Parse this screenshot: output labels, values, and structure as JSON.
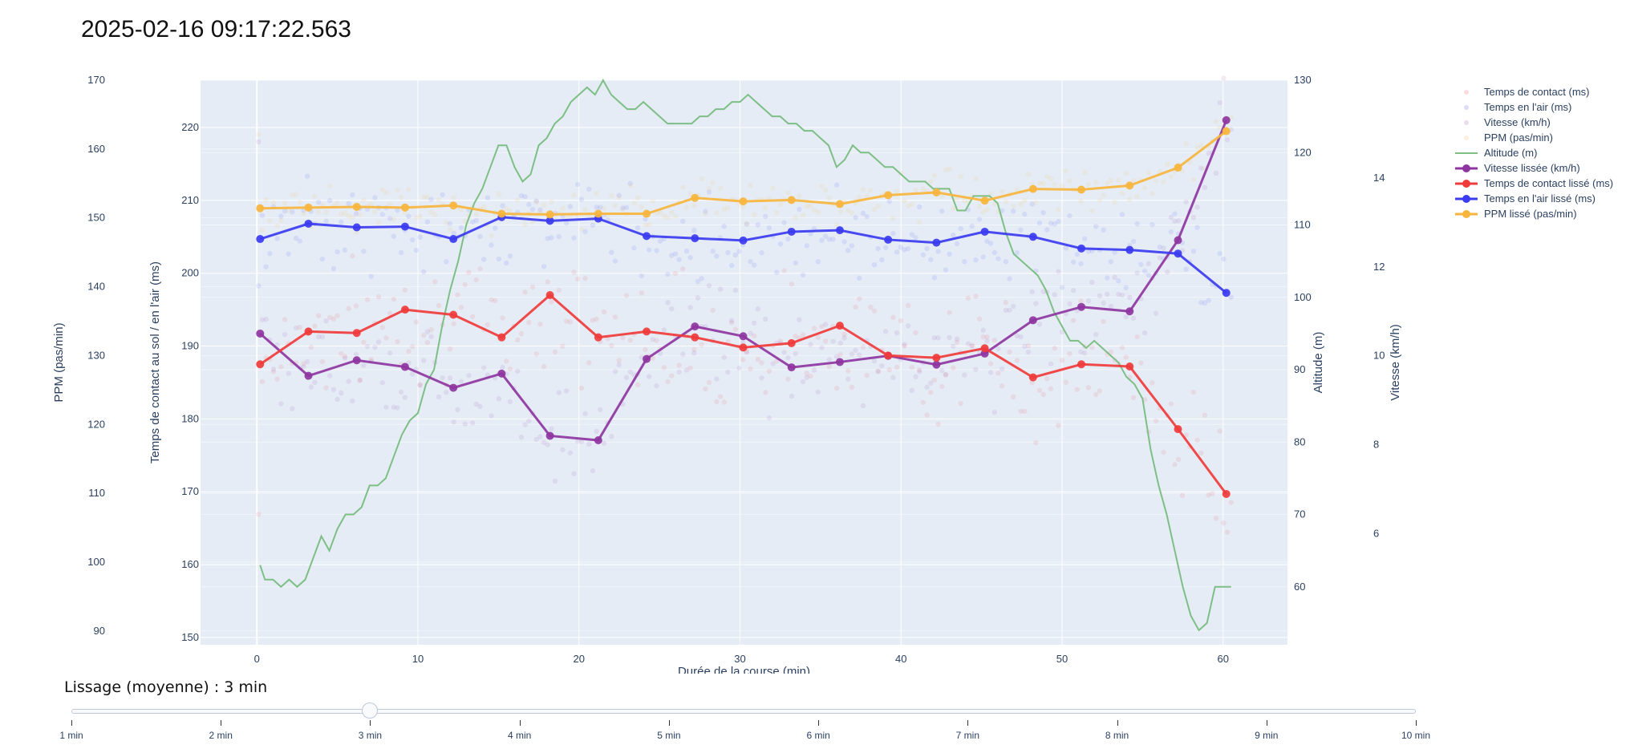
{
  "header": {
    "title": "2025-02-16 09:17:22.563"
  },
  "slider": {
    "label": "Lissage (moyenne) : 3 min",
    "value_index": 2,
    "steps": [
      "1 min",
      "2 min",
      "3 min",
      "4 min",
      "5 min",
      "6 min",
      "7 min",
      "8 min",
      "9 min",
      "10 min"
    ]
  },
  "chart_data": {
    "type": "line",
    "xlabel": "Durée de la course (min)",
    "xlim": [
      -3.5,
      64
    ],
    "xticks": [
      0,
      10,
      20,
      30,
      40,
      50,
      60
    ],
    "axes": {
      "contact": {
        "label": "Temps de contact au sol / en l'air (ms)",
        "range": [
          149,
          226.5
        ],
        "ticks": [
          150,
          160,
          170,
          180,
          190,
          200,
          210,
          220
        ]
      },
      "ppm": {
        "label": "PPM (pas/min)",
        "range": [
          88,
          170
        ],
        "ticks": [
          90,
          100,
          110,
          120,
          130,
          140,
          150,
          160,
          170
        ]
      },
      "altitude": {
        "label": "Altitude (m)",
        "range": [
          52,
          130
        ],
        "ticks": [
          60,
          70,
          80,
          90,
          100,
          110,
          120,
          130
        ]
      },
      "vitesse": {
        "label": "Vitesse (km/h)",
        "range": [
          3.5,
          16.2
        ],
        "ticks": [
          6,
          8,
          10,
          12,
          14
        ]
      }
    },
    "legend_position": "top-right",
    "colors": {
      "contact": "#f03b3b",
      "air": "#3b3bf0",
      "vitesse": "#8e35a0",
      "ppm": "#f7b53d",
      "altitude": "#7dbf85",
      "plot_bg": "#e5ecf6"
    },
    "series": [
      {
        "name": "Temps de contact (ms)",
        "type": "scatter",
        "axis": "contact",
        "color": "#f03b3b"
      },
      {
        "name": "Temps en l'air (ms)",
        "type": "scatter",
        "axis": "contact",
        "color": "#3b3bf0"
      },
      {
        "name": "Vitesse (km/h)",
        "type": "scatter",
        "axis": "vitesse",
        "color": "#8e35a0"
      },
      {
        "name": "PPM (pas/min)",
        "type": "scatter",
        "axis": "ppm",
        "color": "#f7b53d"
      },
      {
        "name": "Altitude (m)",
        "type": "line",
        "axis": "altitude",
        "color": "#7dbf85",
        "x": [
          0.2,
          0.5,
          1,
          1.5,
          2,
          2.5,
          3,
          3.5,
          4,
          4.5,
          5,
          5.5,
          6,
          6.5,
          7,
          7.5,
          8,
          8.5,
          9,
          9.5,
          10,
          10.5,
          11,
          11.5,
          12,
          12.5,
          13,
          13.5,
          14,
          14.5,
          15,
          15.5,
          16,
          16.5,
          17,
          17.5,
          18,
          18.5,
          19,
          19.5,
          20,
          20.5,
          21,
          21.5,
          22,
          22.5,
          23,
          23.5,
          24,
          24.5,
          25,
          25.5,
          26,
          26.5,
          27,
          27.5,
          28,
          28.5,
          29,
          29.5,
          30,
          30.5,
          31,
          31.5,
          32,
          32.5,
          33,
          33.5,
          34,
          34.5,
          35,
          35.5,
          36,
          36.5,
          37,
          37.5,
          38,
          38.5,
          39,
          39.5,
          40,
          40.5,
          41,
          41.5,
          42,
          42.5,
          43,
          43.5,
          44,
          44.5,
          45,
          45.5,
          46,
          46.5,
          47,
          47.5,
          48,
          48.5,
          49,
          49.5,
          50,
          50.5,
          51,
          51.5,
          52,
          52.5,
          53,
          53.5,
          54,
          54.5,
          55,
          55.5,
          56,
          56.5,
          57,
          57.5,
          58,
          58.5,
          59,
          59.5,
          60,
          60.5
        ],
        "y": [
          63,
          61,
          61,
          60,
          61,
          60,
          61,
          64,
          67,
          65,
          68,
          70,
          70,
          71,
          74,
          74,
          75,
          78,
          81,
          83,
          84,
          88,
          90,
          96,
          101,
          105,
          110,
          113,
          115,
          118,
          121,
          121,
          118,
          116,
          117,
          121,
          122,
          124,
          125,
          127,
          128,
          129,
          128,
          130,
          128,
          127,
          126,
          126,
          127,
          126,
          125,
          124,
          124,
          124,
          124,
          125,
          125,
          126,
          126,
          127,
          127,
          128,
          127,
          126,
          125,
          125,
          124,
          124,
          123,
          123,
          122,
          121,
          118,
          119,
          121,
          120,
          120,
          119,
          118,
          118,
          117,
          116,
          116,
          116,
          115,
          115,
          115,
          112,
          112,
          114,
          114,
          114,
          113,
          109,
          106,
          105,
          104,
          103,
          101,
          98,
          96,
          94,
          94,
          93,
          94,
          93,
          92,
          91,
          89,
          88,
          86,
          79,
          74,
          70,
          65,
          60,
          56,
          54,
          55,
          60,
          60,
          60
        ]
      },
      {
        "name": "Vitesse lissée (km/h)",
        "type": "line+markers",
        "axis": "vitesse",
        "color": "#8e35a0",
        "x": [
          0.2,
          3.2,
          6.2,
          9.2,
          12.2,
          15.2,
          18.2,
          21.2,
          24.2,
          27.2,
          30.2,
          33.2,
          36.2,
          39.2,
          42.2,
          45.2,
          48.2,
          51.2,
          54.2,
          57.2,
          60.2
        ],
        "y": [
          10.5,
          9.55,
          9.9,
          9.75,
          9.28,
          9.6,
          8.2,
          8.1,
          9.93,
          10.66,
          10.44,
          9.74,
          9.86,
          10.0,
          9.8,
          10.05,
          10.8,
          11.1,
          11.0,
          12.6,
          15.3
        ]
      },
      {
        "name": "Temps de contact lissé (ms)",
        "type": "line+markers",
        "axis": "contact",
        "color": "#f03b3b",
        "x": [
          0.2,
          3.2,
          6.2,
          9.2,
          12.2,
          15.2,
          18.2,
          21.2,
          24.2,
          27.2,
          30.2,
          33.2,
          36.2,
          39.2,
          42.2,
          45.2,
          48.2,
          51.2,
          54.2,
          57.2,
          60.2
        ],
        "y": [
          187.5,
          192.0,
          191.8,
          195.0,
          194.3,
          191.2,
          197.0,
          191.2,
          192.0,
          191.2,
          189.8,
          190.4,
          192.8,
          188.7,
          188.4,
          189.7,
          185.7,
          187.5,
          187.2,
          178.6,
          169.7
        ]
      },
      {
        "name": "Temps en l'air lissé (ms)",
        "type": "line+markers",
        "axis": "contact",
        "color": "#3b3bf0",
        "x": [
          0.2,
          3.2,
          6.2,
          9.2,
          12.2,
          15.2,
          18.2,
          21.2,
          24.2,
          27.2,
          30.2,
          33.2,
          36.2,
          39.2,
          42.2,
          45.2,
          48.2,
          51.2,
          54.2,
          57.2,
          60.2
        ],
        "y": [
          204.7,
          206.8,
          206.3,
          206.4,
          204.7,
          207.7,
          207.2,
          207.5,
          205.1,
          204.8,
          204.5,
          205.7,
          205.9,
          204.6,
          204.2,
          205.7,
          205.0,
          203.4,
          203.2,
          202.7,
          197.3
        ]
      },
      {
        "name": "PPM lissé (pas/min)",
        "type": "line+markers",
        "axis": "ppm",
        "color": "#f7b53d",
        "x": [
          0.2,
          3.2,
          6.2,
          9.2,
          12.2,
          15.2,
          18.2,
          21.2,
          24.2,
          27.2,
          30.2,
          33.2,
          36.2,
          39.2,
          42.2,
          45.2,
          48.2,
          51.2,
          54.2,
          57.2,
          60.2
        ],
        "y": [
          151.4,
          151.5,
          151.6,
          151.5,
          151.8,
          150.6,
          150.5,
          150.6,
          150.6,
          152.9,
          152.4,
          152.6,
          152.0,
          153.3,
          153.7,
          152.5,
          154.2,
          154.1,
          154.7,
          157.3,
          162.6
        ]
      }
    ]
  }
}
